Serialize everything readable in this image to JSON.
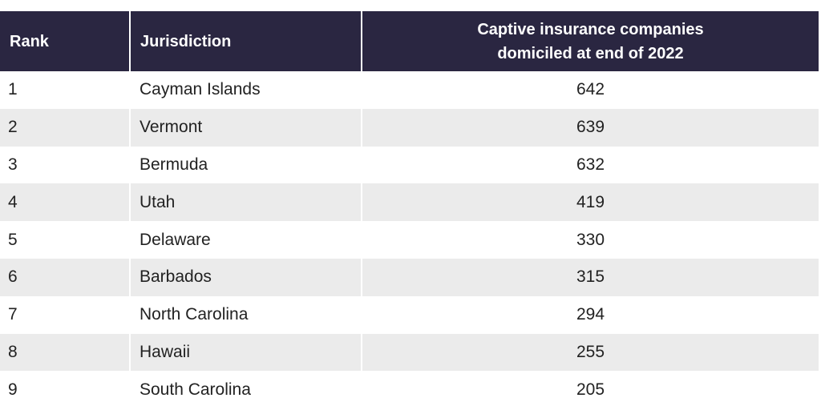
{
  "chart_data": {
    "type": "table",
    "columns": [
      "Rank",
      "Jurisdiction",
      "Captive insurance companies domiciled at end of 2022"
    ],
    "rows": [
      [
        "1",
        "Cayman Islands",
        642
      ],
      [
        "2",
        "Vermont",
        639
      ],
      [
        "3",
        "Bermuda",
        632
      ],
      [
        "4",
        "Utah",
        419
      ],
      [
        "5",
        "Delaware",
        330
      ],
      [
        "6",
        "Barbados",
        315
      ],
      [
        "7",
        "North Carolina",
        294
      ],
      [
        "8",
        "Hawaii",
        255
      ],
      [
        "9",
        "South Carolina",
        205
      ]
    ]
  },
  "colors": {
    "header_bg": "#2a2641",
    "header_text": "#ffffff",
    "row_alt_bg": "#ebebeb",
    "row_text": "#222222"
  }
}
